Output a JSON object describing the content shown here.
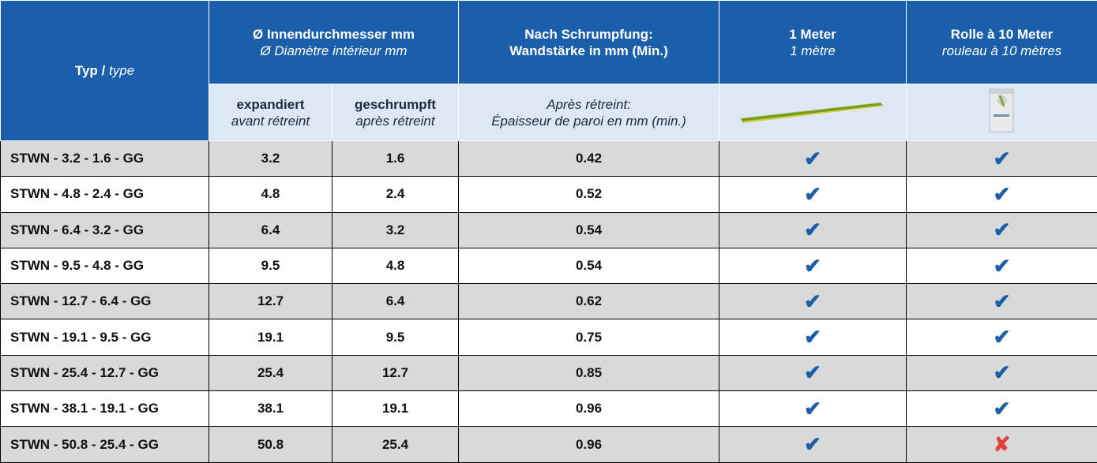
{
  "header": {
    "type": {
      "de": "Typ",
      "sep": "/",
      "fr": "type"
    },
    "inner_diameter": {
      "de": "Ø Innendurchmesser mm",
      "fr": "Ø Diamètre intérieur mm"
    },
    "expanded": {
      "de": "expandiert",
      "fr": "avant rétreint"
    },
    "shrunk": {
      "de": "geschrumpft",
      "fr": "après rétreint"
    },
    "wall": {
      "de": [
        "Nach Schrumpfung:",
        "Wandstärke in mm (Min.)"
      ],
      "fr": [
        "Après rétreint:",
        "Épaisseur de paroi en mm (min.)"
      ]
    },
    "meter": {
      "de": "1 Meter",
      "fr": "1 mètre"
    },
    "roll": {
      "de": "Rolle à 10 Meter",
      "fr": "rouleau à 10 mètres"
    }
  },
  "table": {
    "rows": [
      [
        "STWN - 3.2 - 1.6 - GG",
        3.2,
        1.6,
        0.42,
        {
          "symbol": "✔",
          "color": "#1b5fab"
        },
        {
          "symbol": "✔",
          "color": "#1b5fab"
        }
      ],
      [
        "STWN - 4.8 - 2.4 - GG",
        4.8,
        2.4,
        0.52,
        {
          "symbol": "✔",
          "color": "#1b5fab"
        },
        {
          "symbol": "✔",
          "color": "#1b5fab"
        }
      ],
      [
        "STWN - 6.4 - 3.2 - GG",
        6.4,
        3.2,
        0.54,
        {
          "symbol": "✔",
          "color": "#1b5fab"
        },
        {
          "symbol": "✔",
          "color": "#1b5fab"
        }
      ],
      [
        "STWN - 9.5 - 4.8 - GG",
        9.5,
        4.8,
        0.54,
        {
          "symbol": "✔",
          "color": "#1b5fab"
        },
        {
          "symbol": "✔",
          "color": "#1b5fab"
        }
      ],
      [
        "STWN - 12.7 - 6.4 - GG",
        12.7,
        6.4,
        0.62,
        {
          "symbol": "✔",
          "color": "#1b5fab"
        },
        {
          "symbol": "✔",
          "color": "#1b5fab"
        }
      ],
      [
        "STWN - 19.1 - 9.5 - GG",
        19.1,
        9.5,
        0.75,
        {
          "symbol": "✔",
          "color": "#1b5fab"
        },
        {
          "symbol": "✔",
          "color": "#1b5fab"
        }
      ],
      [
        "STWN - 25.4 - 12.7 - GG",
        25.4,
        12.7,
        0.85,
        {
          "symbol": "✔",
          "color": "#1b5fab"
        },
        {
          "symbol": "✔",
          "color": "#1b5fab"
        }
      ],
      [
        "STWN - 38.1 - 19.1 - GG",
        38.1,
        19.1,
        0.96,
        {
          "symbol": "✔",
          "color": "#1b5fab"
        },
        {
          "symbol": "✔",
          "color": "#1b5fab"
        }
      ],
      [
        "STWN - 50.8 - 25.4 - GG",
        50.8,
        25.4,
        0.96,
        {
          "symbol": "✔",
          "color": "#1b5fab"
        },
        {
          "symbol": "✘",
          "color": "#e0443a"
        }
      ]
    ]
  }
}
